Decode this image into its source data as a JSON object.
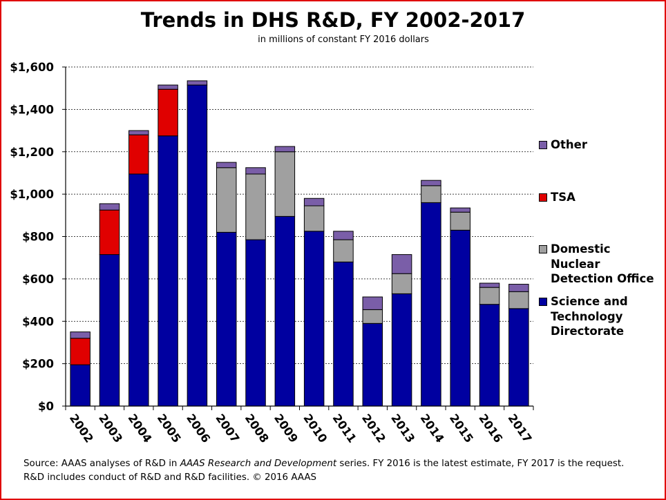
{
  "chart_data": {
    "type": "bar",
    "stacked": true,
    "title": "Trends in DHS R&D, FY 2002-2017",
    "subtitle": "in millions of constant FY 2016 dollars",
    "ylim": [
      0,
      1600
    ],
    "yticks": [
      0,
      200,
      400,
      600,
      800,
      1000,
      1200,
      1400,
      1600
    ],
    "ytick_labels": [
      "$0",
      "$200",
      "$400",
      "$600",
      "$800",
      "$1,000",
      "$1,200",
      "$1,400",
      "$1,600"
    ],
    "grid": true,
    "legend_position": "right",
    "categories": [
      "2002",
      "2003",
      "2004",
      "2005",
      "2006",
      "2007",
      "2008",
      "2009",
      "2010",
      "2011",
      "2012",
      "2013",
      "2014",
      "2015",
      "2016",
      "2017"
    ],
    "series": [
      {
        "name": "Science and Technology Directorate",
        "color": "#0000a0",
        "values": [
          195,
          715,
          1095,
          1275,
          1515,
          820,
          785,
          895,
          825,
          680,
          390,
          530,
          960,
          830,
          480,
          460
        ]
      },
      {
        "name": "Domestic Nuclear Detection Office",
        "color": "#a0a0a0",
        "values": [
          0,
          0,
          0,
          0,
          0,
          305,
          310,
          305,
          120,
          105,
          65,
          95,
          80,
          85,
          80,
          80
        ]
      },
      {
        "name": "TSA",
        "color": "#e00000",
        "values": [
          125,
          210,
          185,
          220,
          0,
          0,
          0,
          0,
          0,
          0,
          0,
          0,
          0,
          0,
          0,
          0
        ]
      },
      {
        "name": "Other",
        "color": "#7a5ea8",
        "values": [
          30,
          30,
          20,
          20,
          20,
          25,
          30,
          25,
          35,
          40,
          60,
          90,
          25,
          20,
          20,
          35
        ]
      }
    ],
    "legend": [
      {
        "label": "Other",
        "color": "#7a5ea8"
      },
      {
        "label": "TSA",
        "color": "#e00000"
      },
      {
        "label": "Domestic Nuclear Detection Office",
        "color": "#a0a0a0"
      },
      {
        "label": "Science and Technology Directorate",
        "color": "#0000a0"
      }
    ]
  },
  "legend_lines": {
    "other": "Other",
    "tsa": "TSA",
    "dndo_1": "Domestic",
    "dndo_2": "Nuclear",
    "dndo_3": "Detection Office",
    "st_1": "Science and",
    "st_2": "Technology",
    "st_3": "Directorate"
  },
  "source": {
    "prefix": "Source: AAAS analyses of R&D in ",
    "italic": "AAAS Research and Development",
    "suffix": " series. FY 2016 is the latest estimate, FY 2017 is the request. R&D includes conduct of R&D and R&D facilities. © 2016 AAAS"
  }
}
